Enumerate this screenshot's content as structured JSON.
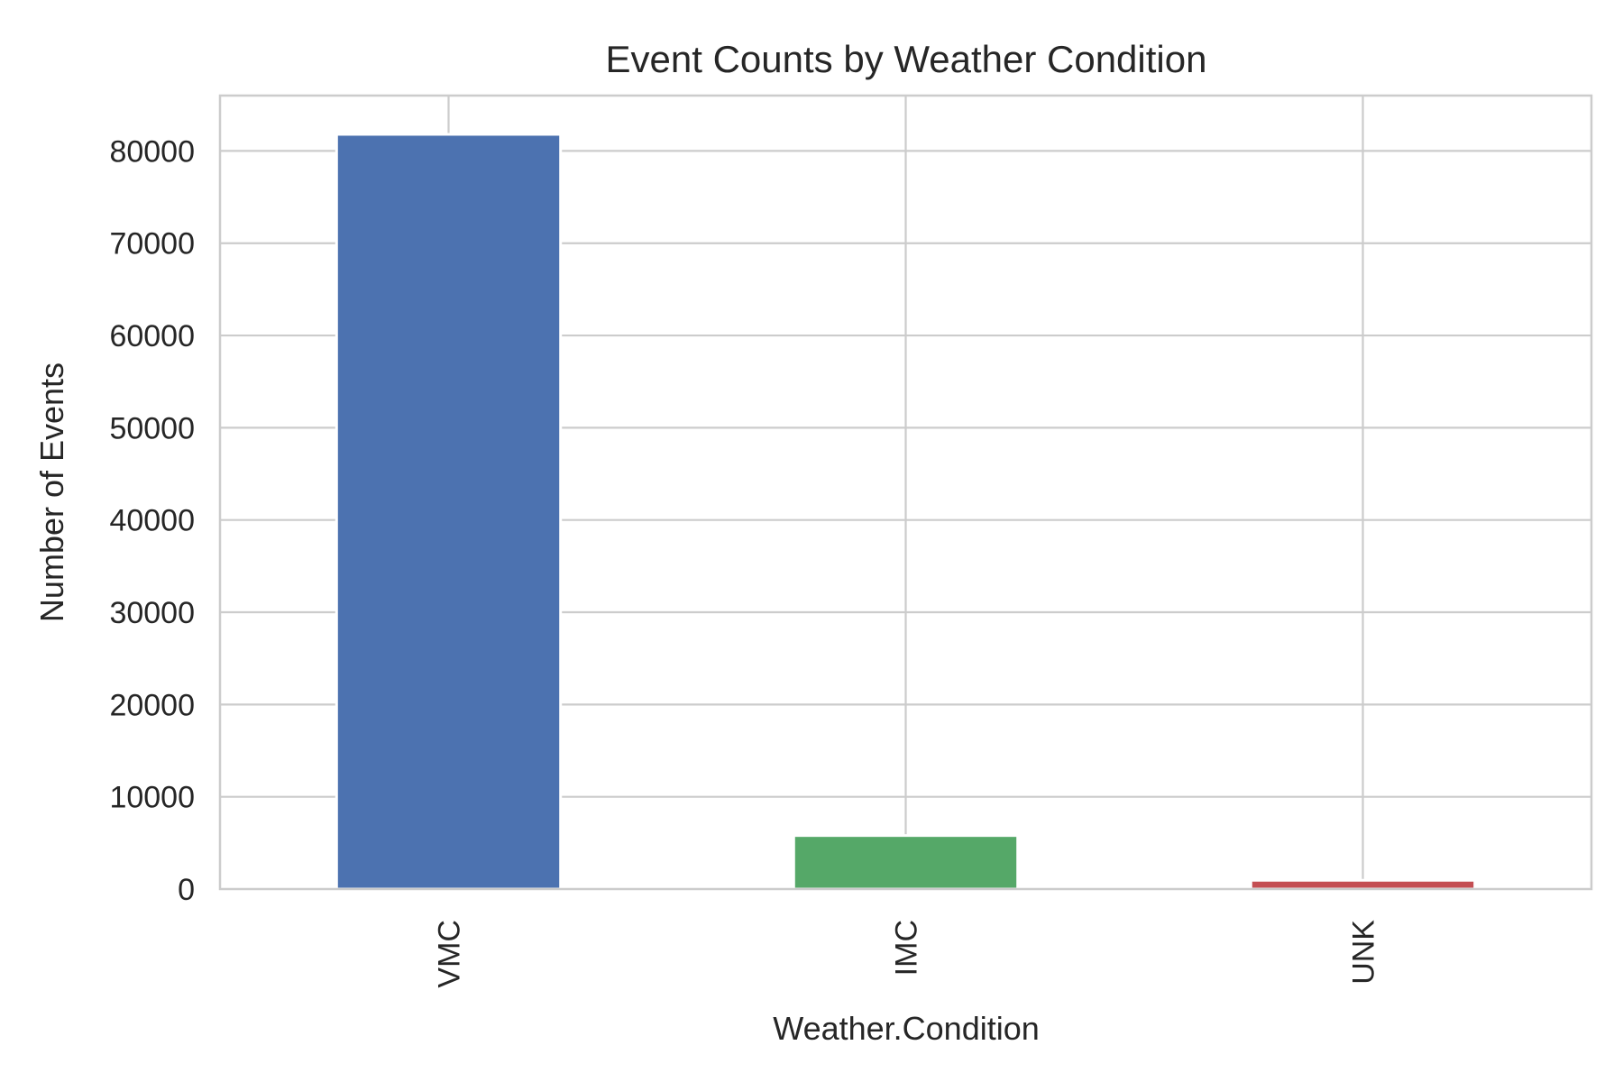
{
  "chart_data": {
    "type": "bar",
    "title": "Event Counts by Weather Condition",
    "xlabel": "Weather.Condition",
    "ylabel": "Number of Events",
    "categories": [
      "VMC",
      "IMC",
      "UNK"
    ],
    "values": [
      81800,
      5800,
      950
    ],
    "colors": [
      "#4c72b0",
      "#55a868",
      "#c44e52"
    ],
    "ylim": [
      0,
      86000
    ],
    "yticks": [
      0,
      10000,
      20000,
      30000,
      40000,
      50000,
      60000,
      70000,
      80000
    ],
    "ytick_labels": [
      "0",
      "10000",
      "20000",
      "30000",
      "40000",
      "50000",
      "60000",
      "70000",
      "80000"
    ],
    "grid": true,
    "legend": "none"
  }
}
